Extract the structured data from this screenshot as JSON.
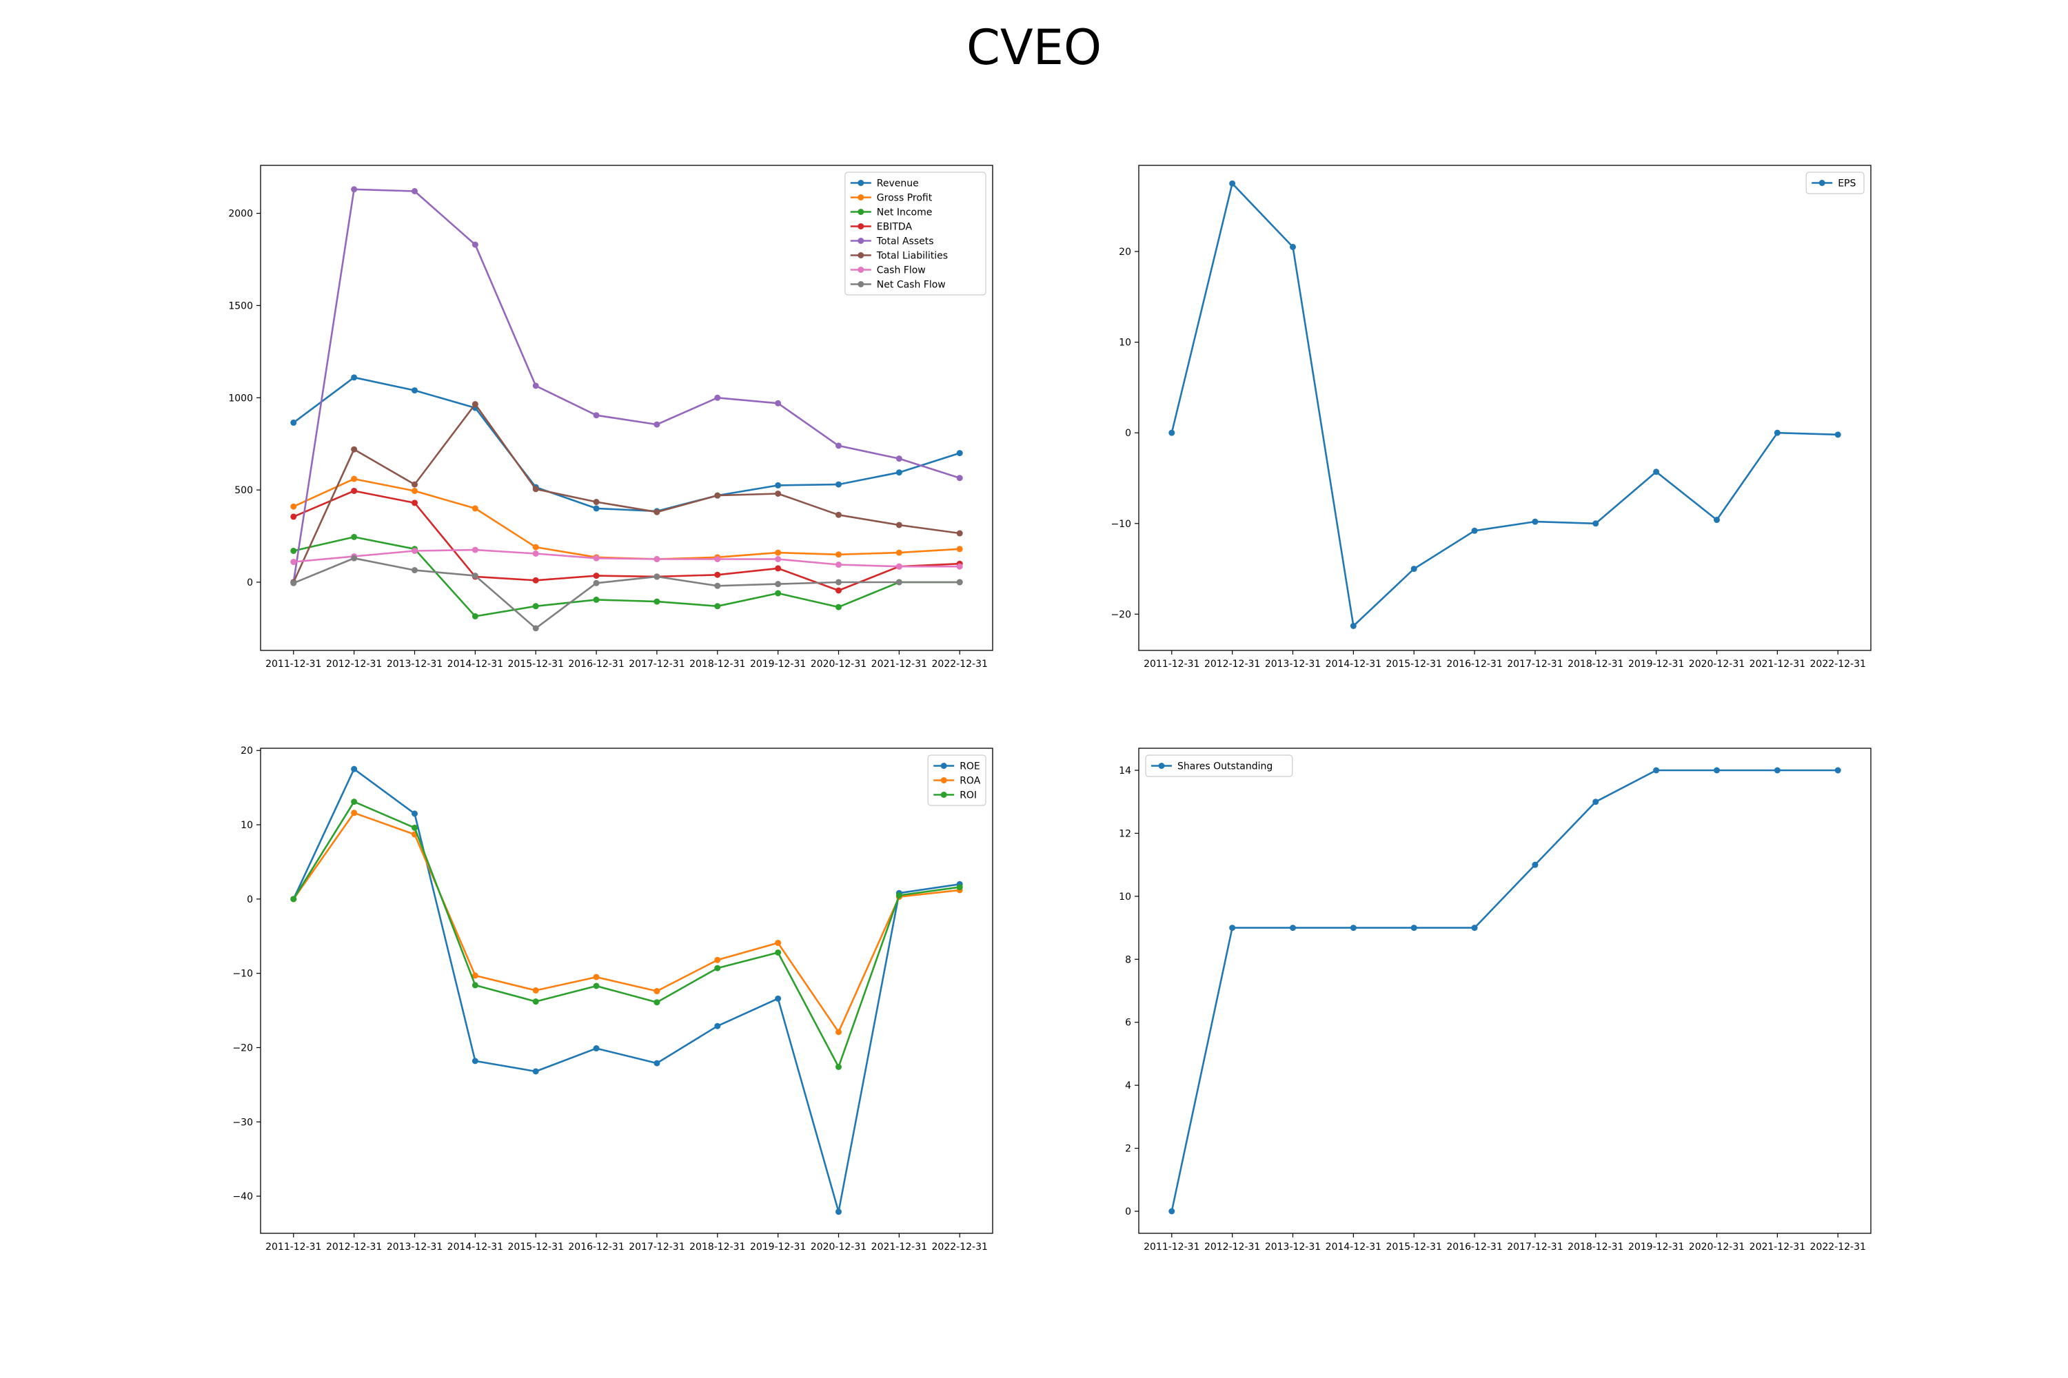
{
  "title": "CVEO",
  "colors": {
    "blue": "#1f77b4",
    "orange": "#ff7f0e",
    "green": "#2ca02c",
    "red": "#d62728",
    "purple": "#9467bd",
    "brown": "#8c564b",
    "pink": "#e377c2",
    "gray": "#7f7f7f"
  },
  "chart_data": [
    {
      "type": "line",
      "categories": [
        "2011-12-31",
        "2012-12-31",
        "2013-12-31",
        "2014-12-31",
        "2015-12-31",
        "2016-12-31",
        "2017-12-31",
        "2018-12-31",
        "2019-12-31",
        "2020-12-31",
        "2021-12-31",
        "2022-12-31"
      ],
      "ylim": [
        -370,
        2260
      ],
      "yticks": [
        0,
        500,
        1000,
        1500,
        2000
      ],
      "legend": "top-right",
      "series": [
        {
          "name": "Revenue",
          "color": "#1f77b4",
          "values": [
            865,
            1110,
            1040,
            945,
            515,
            400,
            385,
            470,
            525,
            530,
            595,
            700
          ]
        },
        {
          "name": "Gross Profit",
          "color": "#ff7f0e",
          "values": [
            410,
            560,
            495,
            400,
            190,
            135,
            125,
            135,
            160,
            150,
            160,
            180
          ]
        },
        {
          "name": "Net Income",
          "color": "#2ca02c",
          "values": [
            170,
            245,
            180,
            -185,
            -130,
            -95,
            -105,
            -130,
            -60,
            -135,
            0,
            0
          ]
        },
        {
          "name": "EBITDA",
          "color": "#d62728",
          "values": [
            355,
            495,
            430,
            30,
            10,
            35,
            30,
            40,
            75,
            -45,
            85,
            100
          ]
        },
        {
          "name": "Total Assets",
          "color": "#9467bd",
          "values": [
            0,
            2130,
            2120,
            1830,
            1065,
            905,
            855,
            1000,
            970,
            740,
            670,
            565
          ]
        },
        {
          "name": "Total Liabilities",
          "color": "#8c564b",
          "values": [
            0,
            720,
            530,
            965,
            505,
            435,
            380,
            470,
            480,
            365,
            310,
            265
          ]
        },
        {
          "name": "Cash Flow",
          "color": "#e377c2",
          "values": [
            110,
            140,
            170,
            175,
            155,
            130,
            125,
            125,
            125,
            95,
            85,
            85
          ]
        },
        {
          "name": "Net Cash Flow",
          "color": "#7f7f7f",
          "values": [
            -5,
            130,
            65,
            35,
            -250,
            -5,
            30,
            -20,
            -10,
            0,
            0,
            0
          ]
        }
      ]
    },
    {
      "type": "line",
      "categories": [
        "2011-12-31",
        "2012-12-31",
        "2013-12-31",
        "2014-12-31",
        "2015-12-31",
        "2016-12-31",
        "2017-12-31",
        "2018-12-31",
        "2019-12-31",
        "2020-12-31",
        "2021-12-31",
        "2022-12-31"
      ],
      "ylim": [
        -24,
        29.5
      ],
      "yticks": [
        -20,
        -10,
        0,
        10,
        20
      ],
      "legend": "top-right",
      "series": [
        {
          "name": "EPS",
          "color": "#1f77b4",
          "values": [
            0,
            27.5,
            20.5,
            -21.3,
            -15.0,
            -10.8,
            -9.8,
            -10.0,
            -4.3,
            -9.6,
            0,
            -0.2
          ]
        }
      ]
    },
    {
      "type": "line",
      "categories": [
        "2011-12-31",
        "2012-12-31",
        "2013-12-31",
        "2014-12-31",
        "2015-12-31",
        "2016-12-31",
        "2017-12-31",
        "2018-12-31",
        "2019-12-31",
        "2020-12-31",
        "2021-12-31",
        "2022-12-31"
      ],
      "ylim": [
        -45,
        20.3
      ],
      "yticks": [
        -40,
        -30,
        -20,
        -10,
        0,
        10,
        20
      ],
      "legend": "top-right",
      "series": [
        {
          "name": "ROE",
          "color": "#1f77b4",
          "values": [
            0,
            17.5,
            11.5,
            -21.8,
            -23.2,
            -20.1,
            -22.1,
            -17.1,
            -13.4,
            -42.1,
            0.8,
            2.0
          ]
        },
        {
          "name": "ROA",
          "color": "#ff7f0e",
          "values": [
            0,
            11.6,
            8.7,
            -10.3,
            -12.3,
            -10.5,
            -12.4,
            -8.2,
            -5.9,
            -17.9,
            0.3,
            1.2
          ]
        },
        {
          "name": "ROI",
          "color": "#2ca02c",
          "values": [
            0,
            13.1,
            9.6,
            -11.6,
            -13.8,
            -11.7,
            -13.9,
            -9.3,
            -7.2,
            -22.6,
            0.5,
            1.6
          ]
        }
      ]
    },
    {
      "type": "line",
      "categories": [
        "2011-12-31",
        "2012-12-31",
        "2013-12-31",
        "2014-12-31",
        "2015-12-31",
        "2016-12-31",
        "2017-12-31",
        "2018-12-31",
        "2019-12-31",
        "2020-12-31",
        "2021-12-31",
        "2022-12-31"
      ],
      "ylim": [
        -0.7,
        14.7
      ],
      "yticks": [
        0,
        2,
        4,
        6,
        8,
        10,
        12,
        14
      ],
      "legend": "top-left",
      "series": [
        {
          "name": "Shares Outstanding",
          "color": "#1f77b4",
          "values": [
            0,
            9,
            9,
            9,
            9,
            9,
            11,
            13,
            14,
            14,
            14,
            14
          ]
        }
      ]
    }
  ]
}
